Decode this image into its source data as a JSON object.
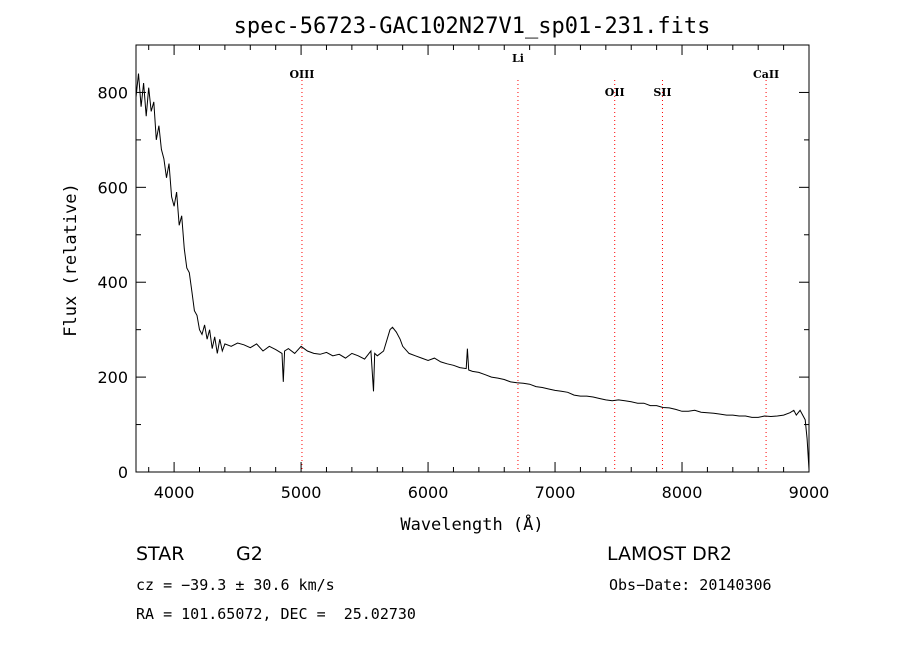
{
  "chart_data": {
    "type": "line",
    "title": "spec-56723-GAC102N27V1_sp01-231.fits",
    "xlabel": "Wavelength (Å)",
    "ylabel": "Flux (relative)",
    "xlim": [
      3700,
      9000
    ],
    "ylim": [
      0,
      900
    ],
    "x_ticks": [
      4000,
      5000,
      6000,
      7000,
      8000,
      9000
    ],
    "y_ticks": [
      0,
      200,
      400,
      600,
      800
    ],
    "grid": false,
    "line_color": "#000000",
    "marker_color": "#ff0000",
    "series": [
      {
        "x": [
          3700,
          3720,
          3740,
          3760,
          3780,
          3800,
          3820,
          3840,
          3860,
          3880,
          3900,
          3920,
          3940,
          3960,
          3980,
          4000,
          4020,
          4040,
          4060,
          4080,
          4100,
          4120,
          4140,
          4160,
          4180,
          4200,
          4220,
          4240,
          4260,
          4280,
          4300,
          4320,
          4340,
          4360,
          4380,
          4400,
          4450,
          4500,
          4550,
          4600,
          4650,
          4700,
          4750,
          4800,
          4850,
          4860,
          4870,
          4900,
          4950,
          5000,
          5050,
          5100,
          5150,
          5200,
          5250,
          5300,
          5350,
          5400,
          5450,
          5500,
          5550,
          5570,
          5580,
          5600,
          5650,
          5700,
          5720,
          5750,
          5780,
          5800,
          5850,
          5900,
          5950,
          6000,
          6050,
          6100,
          6150,
          6200,
          6250,
          6300,
          6310,
          6320,
          6350,
          6400,
          6450,
          6500,
          6550,
          6600,
          6650,
          6700,
          6750,
          6800,
          6850,
          6900,
          6950,
          7000,
          7050,
          7100,
          7150,
          7200,
          7250,
          7300,
          7350,
          7400,
          7450,
          7500,
          7550,
          7600,
          7650,
          7700,
          7750,
          7800,
          7850,
          7900,
          7950,
          8000,
          8050,
          8100,
          8150,
          8200,
          8250,
          8300,
          8350,
          8400,
          8450,
          8500,
          8550,
          8600,
          8650,
          8700,
          8750,
          8800,
          8850,
          8880,
          8900,
          8930,
          8950,
          8970,
          8985,
          9000
        ],
        "y": [
          790,
          840,
          770,
          820,
          750,
          810,
          760,
          780,
          700,
          730,
          680,
          660,
          620,
          650,
          580,
          560,
          590,
          520,
          540,
          470,
          430,
          420,
          380,
          340,
          330,
          300,
          290,
          310,
          280,
          300,
          260,
          285,
          250,
          280,
          255,
          270,
          265,
          272,
          268,
          262,
          270,
          255,
          265,
          258,
          250,
          190,
          255,
          260,
          250,
          265,
          255,
          250,
          248,
          252,
          245,
          248,
          240,
          250,
          245,
          238,
          255,
          170,
          250,
          245,
          255,
          300,
          305,
          295,
          280,
          265,
          250,
          245,
          240,
          235,
          240,
          232,
          228,
          225,
          220,
          218,
          260,
          215,
          212,
          210,
          205,
          200,
          198,
          195,
          190,
          188,
          187,
          185,
          180,
          178,
          175,
          172,
          170,
          168,
          162,
          160,
          160,
          158,
          155,
          152,
          150,
          152,
          150,
          148,
          145,
          145,
          140,
          140,
          136,
          135,
          132,
          128,
          128,
          130,
          126,
          125,
          124,
          122,
          120,
          120,
          118,
          118,
          115,
          115,
          118,
          117,
          118,
          120,
          125,
          130,
          120,
          130,
          120,
          110,
          70,
          5
        ]
      }
    ],
    "annotations": [
      {
        "label": "OIII",
        "x": 5007
      },
      {
        "label": "Li",
        "x": 6708
      },
      {
        "label": "OII",
        "x": 7470
      },
      {
        "label": "SII",
        "x": 7846
      },
      {
        "label": "CaII",
        "x": 8662
      }
    ],
    "footer": {
      "object_type": "STAR",
      "subclass": "G2",
      "survey": "LAMOST DR2",
      "cz": "cz = −39.3 ± 30.6 km/s",
      "obs_date": "Obs−Date: 20140306",
      "coords": "RA = 101.65072, DEC =  25.02730"
    }
  }
}
